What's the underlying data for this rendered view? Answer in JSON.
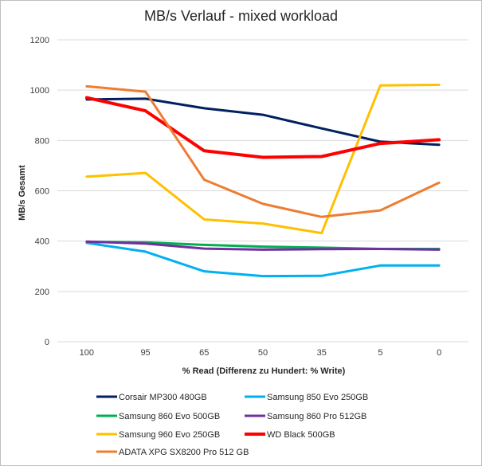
{
  "chart_data": {
    "type": "line",
    "title": "MB/s Verlauf - mixed workload",
    "xlabel": "% Read (Differenz zu Hundert: % Write)",
    "ylabel": "MB/s Gesamt",
    "categories": [
      "100",
      "95",
      "65",
      "50",
      "35",
      "5",
      "0"
    ],
    "ylim": [
      0,
      1200
    ],
    "yticks": [
      0,
      200,
      400,
      600,
      800,
      1000,
      1200
    ],
    "grid": true,
    "legend_position": "bottom",
    "series": [
      {
        "name": "Corsair MP300 480GB",
        "color": "#002060",
        "values": [
          963,
          966,
          928,
          902,
          848,
          795,
          783
        ]
      },
      {
        "name": "Samsung 850 Evo 250GB",
        "color": "#00b0f0",
        "values": [
          393,
          358,
          280,
          261,
          262,
          303,
          303
        ]
      },
      {
        "name": "Samsung 860 Evo 500GB",
        "color": "#00b050",
        "values": [
          397,
          395,
          385,
          378,
          374,
          369,
          369
        ]
      },
      {
        "name": "Samsung 860 Pro 512GB",
        "color": "#7030a0",
        "values": [
          398,
          390,
          370,
          366,
          368,
          369,
          366
        ]
      },
      {
        "name": "Samsung 960 Evo 250GB",
        "color": "#ffc000",
        "values": [
          656,
          671,
          486,
          470,
          432,
          1019,
          1021
        ]
      },
      {
        "name": "WD Black 500GB",
        "color": "#ff0000",
        "values": [
          970,
          918,
          759,
          733,
          736,
          788,
          803
        ]
      },
      {
        "name": "ADATA XPG SX8200 Pro 512 GB",
        "color": "#ed7d31",
        "values": [
          1015,
          994,
          644,
          548,
          496,
          522,
          632
        ]
      }
    ]
  }
}
